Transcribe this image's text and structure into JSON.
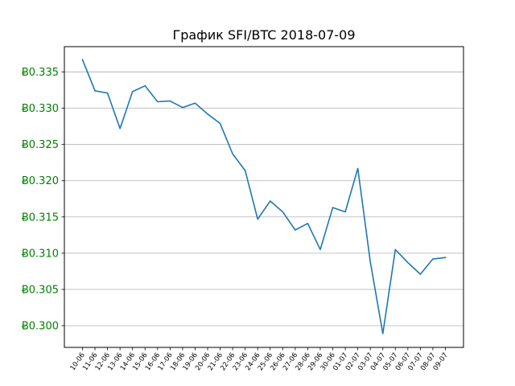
{
  "chart_data": {
    "type": "line",
    "title": "График SFI/BTC 2018-07-09",
    "xlabel": "",
    "ylabel": "",
    "y_tick_prefix": "Ƀ",
    "ylim": [
      0.297,
      0.3385
    ],
    "yticks": [
      0.3,
      0.305,
      0.31,
      0.315,
      0.32,
      0.325,
      0.33,
      0.335
    ],
    "ytick_labels": [
      "Ƀ0.300",
      "Ƀ0.305",
      "Ƀ0.310",
      "Ƀ0.315",
      "Ƀ0.320",
      "Ƀ0.325",
      "Ƀ0.330",
      "Ƀ0.335"
    ],
    "grid": "horizontal",
    "colors": {
      "series": "#1f77b4",
      "ytick_text": "#008000",
      "grid": "#b0b0b0"
    },
    "categories": [
      "10-06",
      "11-06",
      "12-06",
      "13-06",
      "14-06",
      "15-06",
      "16-06",
      "17-06",
      "18-06",
      "19-06",
      "20-06",
      "21-06",
      "22-06",
      "23-06",
      "24-06",
      "25-06",
      "26-06",
      "27-06",
      "28-06",
      "29-06",
      "30-06",
      "01-07",
      "02-07",
      "03-07",
      "04-07",
      "05-07",
      "06-07",
      "07-07",
      "08-07",
      "09-07"
    ],
    "series": [
      {
        "name": "",
        "values": [
          0.3367,
          0.3324,
          0.3321,
          0.3272,
          0.3323,
          0.3331,
          0.3309,
          0.331,
          0.3301,
          0.3307,
          0.3292,
          0.3279,
          0.3237,
          0.3214,
          0.3147,
          0.3172,
          0.3157,
          0.3132,
          0.3141,
          0.3105,
          0.3163,
          0.3157,
          0.3217,
          0.3088,
          0.2989,
          0.3105,
          0.3087,
          0.3071,
          0.3092,
          0.3094
        ]
      }
    ]
  }
}
